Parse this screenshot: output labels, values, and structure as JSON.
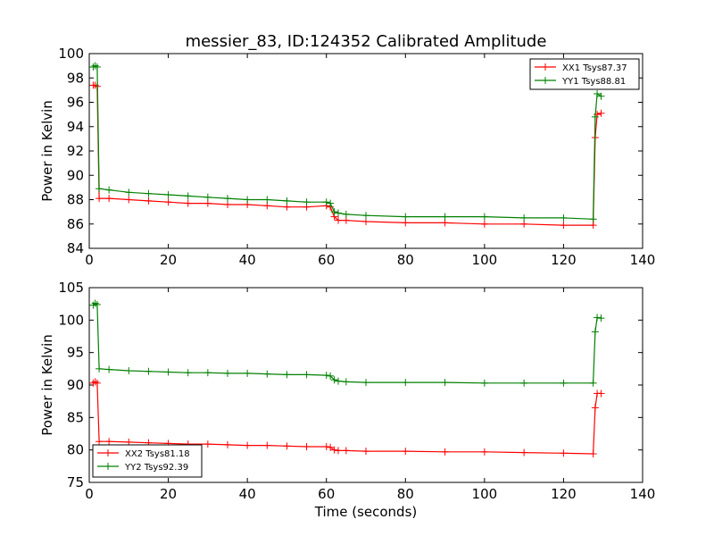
{
  "chart_data": [
    {
      "type": "line",
      "title": "messier_83, ID:124352 Calibrated Amplitude",
      "xlabel": "",
      "ylabel": "Power in Kelvin",
      "xlim": [
        0,
        140
      ],
      "ylim": [
        84,
        100
      ],
      "xticks": [
        "0",
        "20",
        "40",
        "60",
        "80",
        "100",
        "120",
        "140"
      ],
      "yticks": [
        "84",
        "86",
        "88",
        "90",
        "92",
        "94",
        "96",
        "98",
        "100"
      ],
      "legend_position": "top-right",
      "series": [
        {
          "name": "XX1 Tsys87.37",
          "color": "#ff0000",
          "x": [
            1,
            1.5,
            2,
            2.5,
            5,
            10,
            15,
            20,
            25,
            30,
            35,
            40,
            45,
            50,
            55,
            60,
            61,
            62,
            63,
            65,
            70,
            80,
            90,
            100,
            110,
            120,
            127.5,
            128,
            128.5,
            129.5
          ],
          "y": [
            97.4,
            97.4,
            97.3,
            88.1,
            88.1,
            88.0,
            87.9,
            87.8,
            87.7,
            87.7,
            87.6,
            87.6,
            87.5,
            87.4,
            87.4,
            87.5,
            87.4,
            86.6,
            86.3,
            86.3,
            86.2,
            86.1,
            86.1,
            86.0,
            86.0,
            85.9,
            85.9,
            93.1,
            95.0,
            95.1
          ]
        },
        {
          "name": "YY1 Tsys88.81",
          "color": "#008000",
          "x": [
            1,
            1.5,
            2,
            2.5,
            5,
            10,
            15,
            20,
            25,
            30,
            35,
            40,
            45,
            50,
            55,
            60,
            61,
            62,
            63,
            65,
            70,
            80,
            90,
            100,
            110,
            120,
            127.5,
            128,
            128.5,
            129.5
          ],
          "y": [
            98.9,
            99.0,
            98.9,
            88.9,
            88.8,
            88.6,
            88.5,
            88.4,
            88.3,
            88.2,
            88.1,
            88.0,
            88.0,
            87.9,
            87.8,
            87.8,
            87.7,
            87.0,
            86.9,
            86.8,
            86.7,
            86.6,
            86.6,
            86.6,
            86.5,
            86.5,
            86.4,
            94.8,
            96.7,
            96.5
          ]
        }
      ]
    },
    {
      "type": "line",
      "title": "",
      "xlabel": "Time (seconds)",
      "ylabel": "Power in Kelvin",
      "xlim": [
        0,
        140
      ],
      "ylim": [
        75,
        105
      ],
      "xticks": [
        "0",
        "20",
        "40",
        "60",
        "80",
        "100",
        "120",
        "140"
      ],
      "yticks": [
        "75",
        "80",
        "85",
        "90",
        "95",
        "100",
        "105"
      ],
      "legend_position": "bottom-left",
      "series": [
        {
          "name": "XX2 Tsys81.18",
          "color": "#ff0000",
          "x": [
            1,
            1.5,
            2,
            2.5,
            5,
            10,
            15,
            20,
            25,
            30,
            35,
            40,
            45,
            50,
            55,
            60,
            61,
            62,
            63,
            65,
            70,
            80,
            90,
            100,
            110,
            120,
            127.5,
            128,
            128.5,
            129.5
          ],
          "y": [
            90.3,
            90.5,
            90.3,
            81.3,
            81.3,
            81.2,
            81.1,
            81.0,
            80.9,
            80.9,
            80.8,
            80.7,
            80.7,
            80.6,
            80.5,
            80.5,
            80.4,
            80.0,
            79.9,
            79.9,
            79.8,
            79.8,
            79.7,
            79.7,
            79.6,
            79.5,
            79.4,
            86.5,
            88.7,
            88.7
          ]
        },
        {
          "name": "YY2 Tsys92.39",
          "color": "#008000",
          "x": [
            1,
            1.5,
            2,
            2.5,
            5,
            10,
            15,
            20,
            25,
            30,
            35,
            40,
            45,
            50,
            55,
            60,
            61,
            62,
            63,
            65,
            70,
            80,
            90,
            100,
            110,
            120,
            127.5,
            128,
            128.5,
            129.5
          ],
          "y": [
            102.3,
            102.6,
            102.4,
            92.5,
            92.4,
            92.2,
            92.1,
            92.0,
            91.9,
            91.9,
            91.8,
            91.8,
            91.7,
            91.6,
            91.6,
            91.5,
            91.4,
            90.8,
            90.6,
            90.5,
            90.4,
            90.4,
            90.4,
            90.3,
            90.3,
            90.3,
            90.3,
            98.2,
            100.4,
            100.3
          ]
        }
      ]
    }
  ]
}
